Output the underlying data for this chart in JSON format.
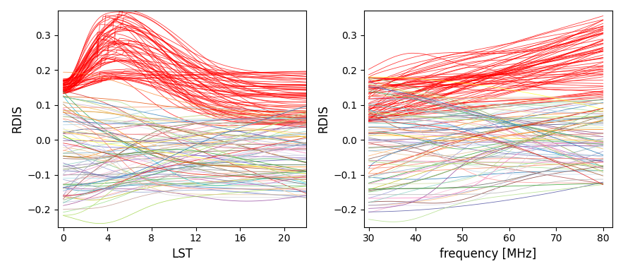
{
  "fig_width": 8.83,
  "fig_height": 3.84,
  "dpi": 100,
  "n_red_lines": 65,
  "n_color_lines": 90,
  "lst_xlim": [
    -0.5,
    22
  ],
  "lst_xticks": [
    0,
    4,
    8,
    12,
    16,
    20
  ],
  "freq_xlim": [
    29,
    82
  ],
  "freq_xticks": [
    30,
    40,
    50,
    60,
    70,
    80
  ],
  "ylim": [
    -0.25,
    0.37
  ],
  "yticks": [
    -0.2,
    -0.1,
    0.0,
    0.1,
    0.2,
    0.3
  ],
  "ylabel": "RDIS",
  "xlabel_left": "LST",
  "xlabel_right": "frequency [MHz]",
  "red_color": "#ff0000",
  "seed": 42
}
